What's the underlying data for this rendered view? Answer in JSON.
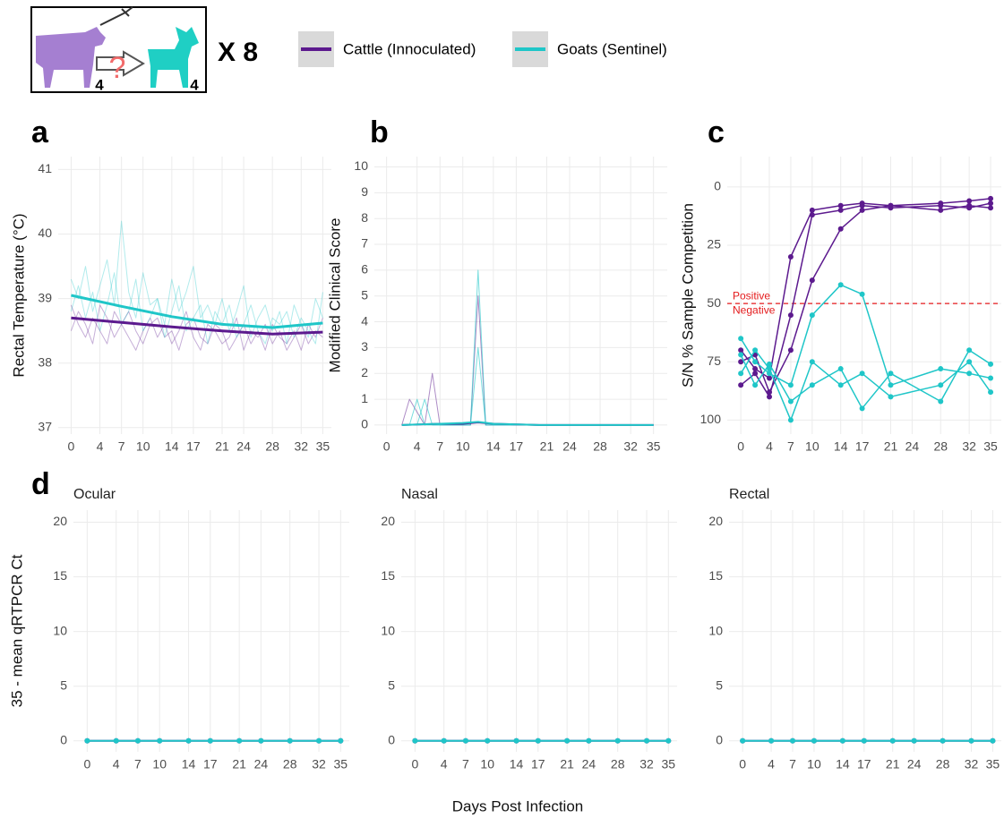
{
  "header": {
    "count_cattle": "4",
    "question": "?",
    "count_goats": "4",
    "multiplier": "X 8"
  },
  "legend": [
    {
      "name": "Cattle (Innoculated)",
      "color": "#5c1a8e"
    },
    {
      "name": "Goats (Sentinel)",
      "color": "#1fc6c8"
    }
  ],
  "xlabel": "Days Post Infection",
  "chart_data": [
    {
      "type": "line",
      "panel": "a",
      "ylabel": "Rectal Temperature (°C)",
      "grid": true,
      "xlim": [
        -1.8,
        36.2
      ],
      "ylim": [
        36.9,
        41.2
      ],
      "xticks": [
        0,
        4,
        7,
        10,
        14,
        17,
        21,
        24,
        28,
        32,
        35
      ],
      "yticks": [
        37,
        38,
        39,
        40,
        41
      ],
      "x": [
        0,
        1,
        2,
        3,
        4,
        5,
        6,
        7,
        8,
        9,
        10,
        11,
        12,
        13,
        14,
        15,
        16,
        17,
        18,
        19,
        20,
        21,
        22,
        23,
        24,
        25,
        26,
        27,
        28,
        29,
        30,
        31,
        32,
        33,
        34,
        35
      ],
      "series": [
        {
          "group": 0,
          "width": 1,
          "opacity": 0.35,
          "values": [
            38.9,
            38.6,
            38.4,
            38.7,
            38.5,
            38.3,
            38.8,
            38.6,
            38.4,
            38.2,
            38.5,
            38.7,
            38.4,
            38.6,
            38.3,
            38.5,
            38.8,
            38.4,
            38.2,
            38.6,
            38.5,
            38.3,
            38.4,
            38.7,
            38.2,
            38.5,
            38.4,
            38.6,
            38.3,
            38.5,
            38.2,
            38.4,
            38.6,
            38.3,
            38.5,
            38.4
          ]
        },
        {
          "group": 0,
          "width": 1,
          "opacity": 0.35,
          "values": [
            38.5,
            38.8,
            38.6,
            38.3,
            38.9,
            38.7,
            38.4,
            38.6,
            38.8,
            38.5,
            38.3,
            38.6,
            38.7,
            38.4,
            38.5,
            38.2,
            38.6,
            38.7,
            38.4,
            38.3,
            38.6,
            38.5,
            38.2,
            38.4,
            38.6,
            38.3,
            38.5,
            38.2,
            38.6,
            38.4,
            38.3,
            38.5,
            38.2,
            38.6,
            38.4,
            38.7
          ]
        },
        {
          "group": 1,
          "width": 1,
          "opacity": 0.35,
          "values": [
            39.3,
            39.0,
            39.5,
            38.8,
            39.2,
            39.6,
            38.9,
            40.2,
            39.1,
            38.7,
            39.4,
            38.9,
            39.0,
            38.6,
            39.3,
            38.8,
            39.1,
            39.5,
            38.7,
            38.9,
            38.6,
            39.0,
            38.5,
            38.8,
            39.2,
            38.4,
            38.7,
            38.9,
            38.5,
            38.8,
            38.3,
            38.9,
            38.6,
            38.4,
            39.0,
            38.7
          ]
        },
        {
          "group": 1,
          "width": 1,
          "opacity": 0.35,
          "values": [
            38.8,
            39.2,
            38.7,
            39.1,
            38.5,
            38.9,
            39.4,
            38.6,
            38.8,
            39.3,
            38.5,
            38.7,
            39.0,
            38.4,
            38.8,
            39.2,
            38.5,
            38.7,
            38.9,
            38.3,
            38.8,
            38.6,
            38.9,
            38.4,
            38.6,
            38.9,
            38.5,
            38.3,
            38.7,
            38.6,
            38.8,
            38.4,
            38.7,
            38.5,
            38.3,
            39.1
          ]
        },
        {
          "group": 0,
          "width": 3,
          "opacity": 1,
          "x": [
            0,
            7,
            14,
            21,
            28,
            35
          ],
          "values": [
            38.7,
            38.63,
            38.56,
            38.5,
            38.45,
            38.48
          ]
        },
        {
          "group": 1,
          "width": 3,
          "opacity": 1,
          "x": [
            0,
            7,
            14,
            21,
            28,
            35
          ],
          "values": [
            39.05,
            38.88,
            38.72,
            38.6,
            38.55,
            38.62
          ]
        }
      ]
    },
    {
      "type": "line",
      "panel": "b",
      "ylabel": "Modified Clinical Score",
      "grid": true,
      "xlim": [
        -1.6,
        36.8
      ],
      "ylim": [
        -0.35,
        10.4
      ],
      "xticks": [
        0,
        4,
        7,
        10,
        14,
        17,
        21,
        24,
        28,
        32,
        35
      ],
      "yticks": [
        0,
        1,
        2,
        3,
        4,
        5,
        6,
        7,
        8,
        9,
        10
      ],
      "series": [
        {
          "group": 0,
          "width": 1,
          "opacity": 0.5,
          "x": [
            2,
            3,
            5,
            6,
            7,
            11,
            12,
            13,
            14,
            35
          ],
          "values": [
            0,
            1,
            0,
            2,
            0,
            0,
            5,
            0,
            0,
            0
          ]
        },
        {
          "group": 1,
          "width": 1,
          "opacity": 0.6,
          "x": [
            2,
            3,
            4,
            5,
            6,
            11,
            12,
            13,
            35
          ],
          "values": [
            0,
            0,
            1,
            0,
            0,
            0,
            6,
            0,
            0
          ]
        },
        {
          "group": 1,
          "width": 1,
          "opacity": 0.6,
          "x": [
            3,
            4,
            5,
            6,
            11,
            12,
            13,
            35
          ],
          "values": [
            0,
            0,
            1,
            0,
            0,
            3,
            0,
            0
          ]
        },
        {
          "group": 0,
          "width": 2,
          "opacity": 1,
          "x": [
            2,
            7,
            10,
            12,
            14,
            20,
            35
          ],
          "values": [
            0,
            0.05,
            0.05,
            0.1,
            0.05,
            0,
            0
          ]
        },
        {
          "group": 1,
          "width": 2,
          "opacity": 1,
          "x": [
            2,
            7,
            10,
            12,
            14,
            20,
            35
          ],
          "values": [
            0,
            0.05,
            0.08,
            0.12,
            0.05,
            0,
            0
          ]
        }
      ]
    },
    {
      "type": "line",
      "panel": "c",
      "ylabel": "S/N % Sample Competition",
      "grid": true,
      "points": true,
      "xlim": [
        -1.9,
        36.5
      ],
      "ylim": [
        106,
        -13
      ],
      "xticks": [
        0,
        4,
        7,
        10,
        14,
        17,
        21,
        24,
        28,
        32,
        35
      ],
      "yticks": [
        0,
        25,
        50,
        75,
        100
      ],
      "hline": {
        "value": 50,
        "color": "#e41a1c",
        "labels": [
          "Positive",
          "Negative"
        ]
      },
      "x": [
        0,
        2,
        4,
        7,
        10,
        14,
        17,
        21,
        28,
        32,
        35
      ],
      "series": [
        {
          "group": 0,
          "width": 1.5,
          "opacity": 1,
          "values": [
            70,
            78,
            82,
            30,
            10,
            8,
            7,
            8,
            7,
            6,
            5
          ]
        },
        {
          "group": 0,
          "width": 1.5,
          "opacity": 1,
          "values": [
            85,
            80,
            90,
            55,
            12,
            10,
            8,
            9,
            8,
            9,
            7
          ]
        },
        {
          "group": 0,
          "width": 1.5,
          "opacity": 1,
          "values": [
            75,
            72,
            88,
            70,
            40,
            18,
            10,
            8,
            10,
            8,
            9
          ]
        },
        {
          "group": 1,
          "width": 1.5,
          "opacity": 1,
          "values": [
            65,
            75,
            80,
            85,
            55,
            42,
            46,
            85,
            78,
            80,
            82
          ]
        },
        {
          "group": 1,
          "width": 1.5,
          "opacity": 1,
          "values": [
            80,
            70,
            78,
            100,
            75,
            85,
            80,
            90,
            85,
            75,
            88
          ]
        },
        {
          "group": 1,
          "width": 1.5,
          "opacity": 1,
          "values": [
            72,
            85,
            76,
            92,
            85,
            78,
            95,
            80,
            92,
            70,
            76
          ]
        }
      ]
    },
    {
      "type": "line",
      "panel": "d",
      "title": "Ocular",
      "ylabel": "35 - mean qRTPCR Ct",
      "grid": true,
      "points": true,
      "xlim": [
        -1.9,
        36.2
      ],
      "ylim": [
        -1,
        21.1
      ],
      "xticks": [
        0,
        4,
        7,
        10,
        14,
        17,
        21,
        24,
        28,
        32,
        35
      ],
      "yticks": [
        0,
        5,
        10,
        15,
        20
      ],
      "x": [
        0,
        4,
        7,
        10,
        14,
        17,
        21,
        24,
        28,
        32,
        35
      ],
      "series": [
        {
          "group": 0,
          "width": 2,
          "opacity": 1,
          "values": [
            0,
            0,
            0,
            0,
            0,
            0,
            0,
            0,
            0,
            0,
            0
          ]
        },
        {
          "group": 1,
          "width": 2,
          "opacity": 1,
          "values": [
            0,
            0,
            0,
            0,
            0,
            0,
            0,
            0,
            0,
            0,
            0
          ]
        }
      ]
    },
    {
      "type": "line",
      "title": "Nasal",
      "grid": true,
      "points": true,
      "xlim": [
        -1.9,
        36.2
      ],
      "ylim": [
        -1,
        21.1
      ],
      "xticks": [
        0,
        4,
        7,
        10,
        14,
        17,
        21,
        24,
        28,
        32,
        35
      ],
      "yticks": [
        0,
        5,
        10,
        15,
        20
      ],
      "x": [
        0,
        4,
        7,
        10,
        14,
        17,
        21,
        24,
        28,
        32,
        35
      ],
      "series": [
        {
          "group": 0,
          "width": 2,
          "opacity": 1,
          "values": [
            0,
            0,
            0,
            0,
            0,
            0,
            0,
            0,
            0,
            0,
            0
          ]
        },
        {
          "group": 1,
          "width": 2,
          "opacity": 1,
          "values": [
            0,
            0,
            0,
            0,
            0,
            0,
            0,
            0,
            0,
            0,
            0
          ]
        }
      ]
    },
    {
      "type": "line",
      "title": "Rectal",
      "grid": true,
      "points": true,
      "xlim": [
        -1.9,
        36.2
      ],
      "ylim": [
        -1,
        21.1
      ],
      "xticks": [
        0,
        4,
        7,
        10,
        14,
        17,
        21,
        24,
        28,
        32,
        35
      ],
      "yticks": [
        0,
        5,
        10,
        15,
        20
      ],
      "x": [
        0,
        4,
        7,
        10,
        14,
        17,
        21,
        24,
        28,
        32,
        35
      ],
      "series": [
        {
          "group": 0,
          "width": 2,
          "opacity": 1,
          "values": [
            0,
            0,
            0,
            0,
            0,
            0,
            0,
            0,
            0,
            0,
            0
          ]
        },
        {
          "group": 1,
          "width": 2,
          "opacity": 1,
          "values": [
            0,
            0,
            0,
            0,
            0,
            0,
            0,
            0,
            0,
            0,
            0
          ]
        }
      ]
    }
  ]
}
